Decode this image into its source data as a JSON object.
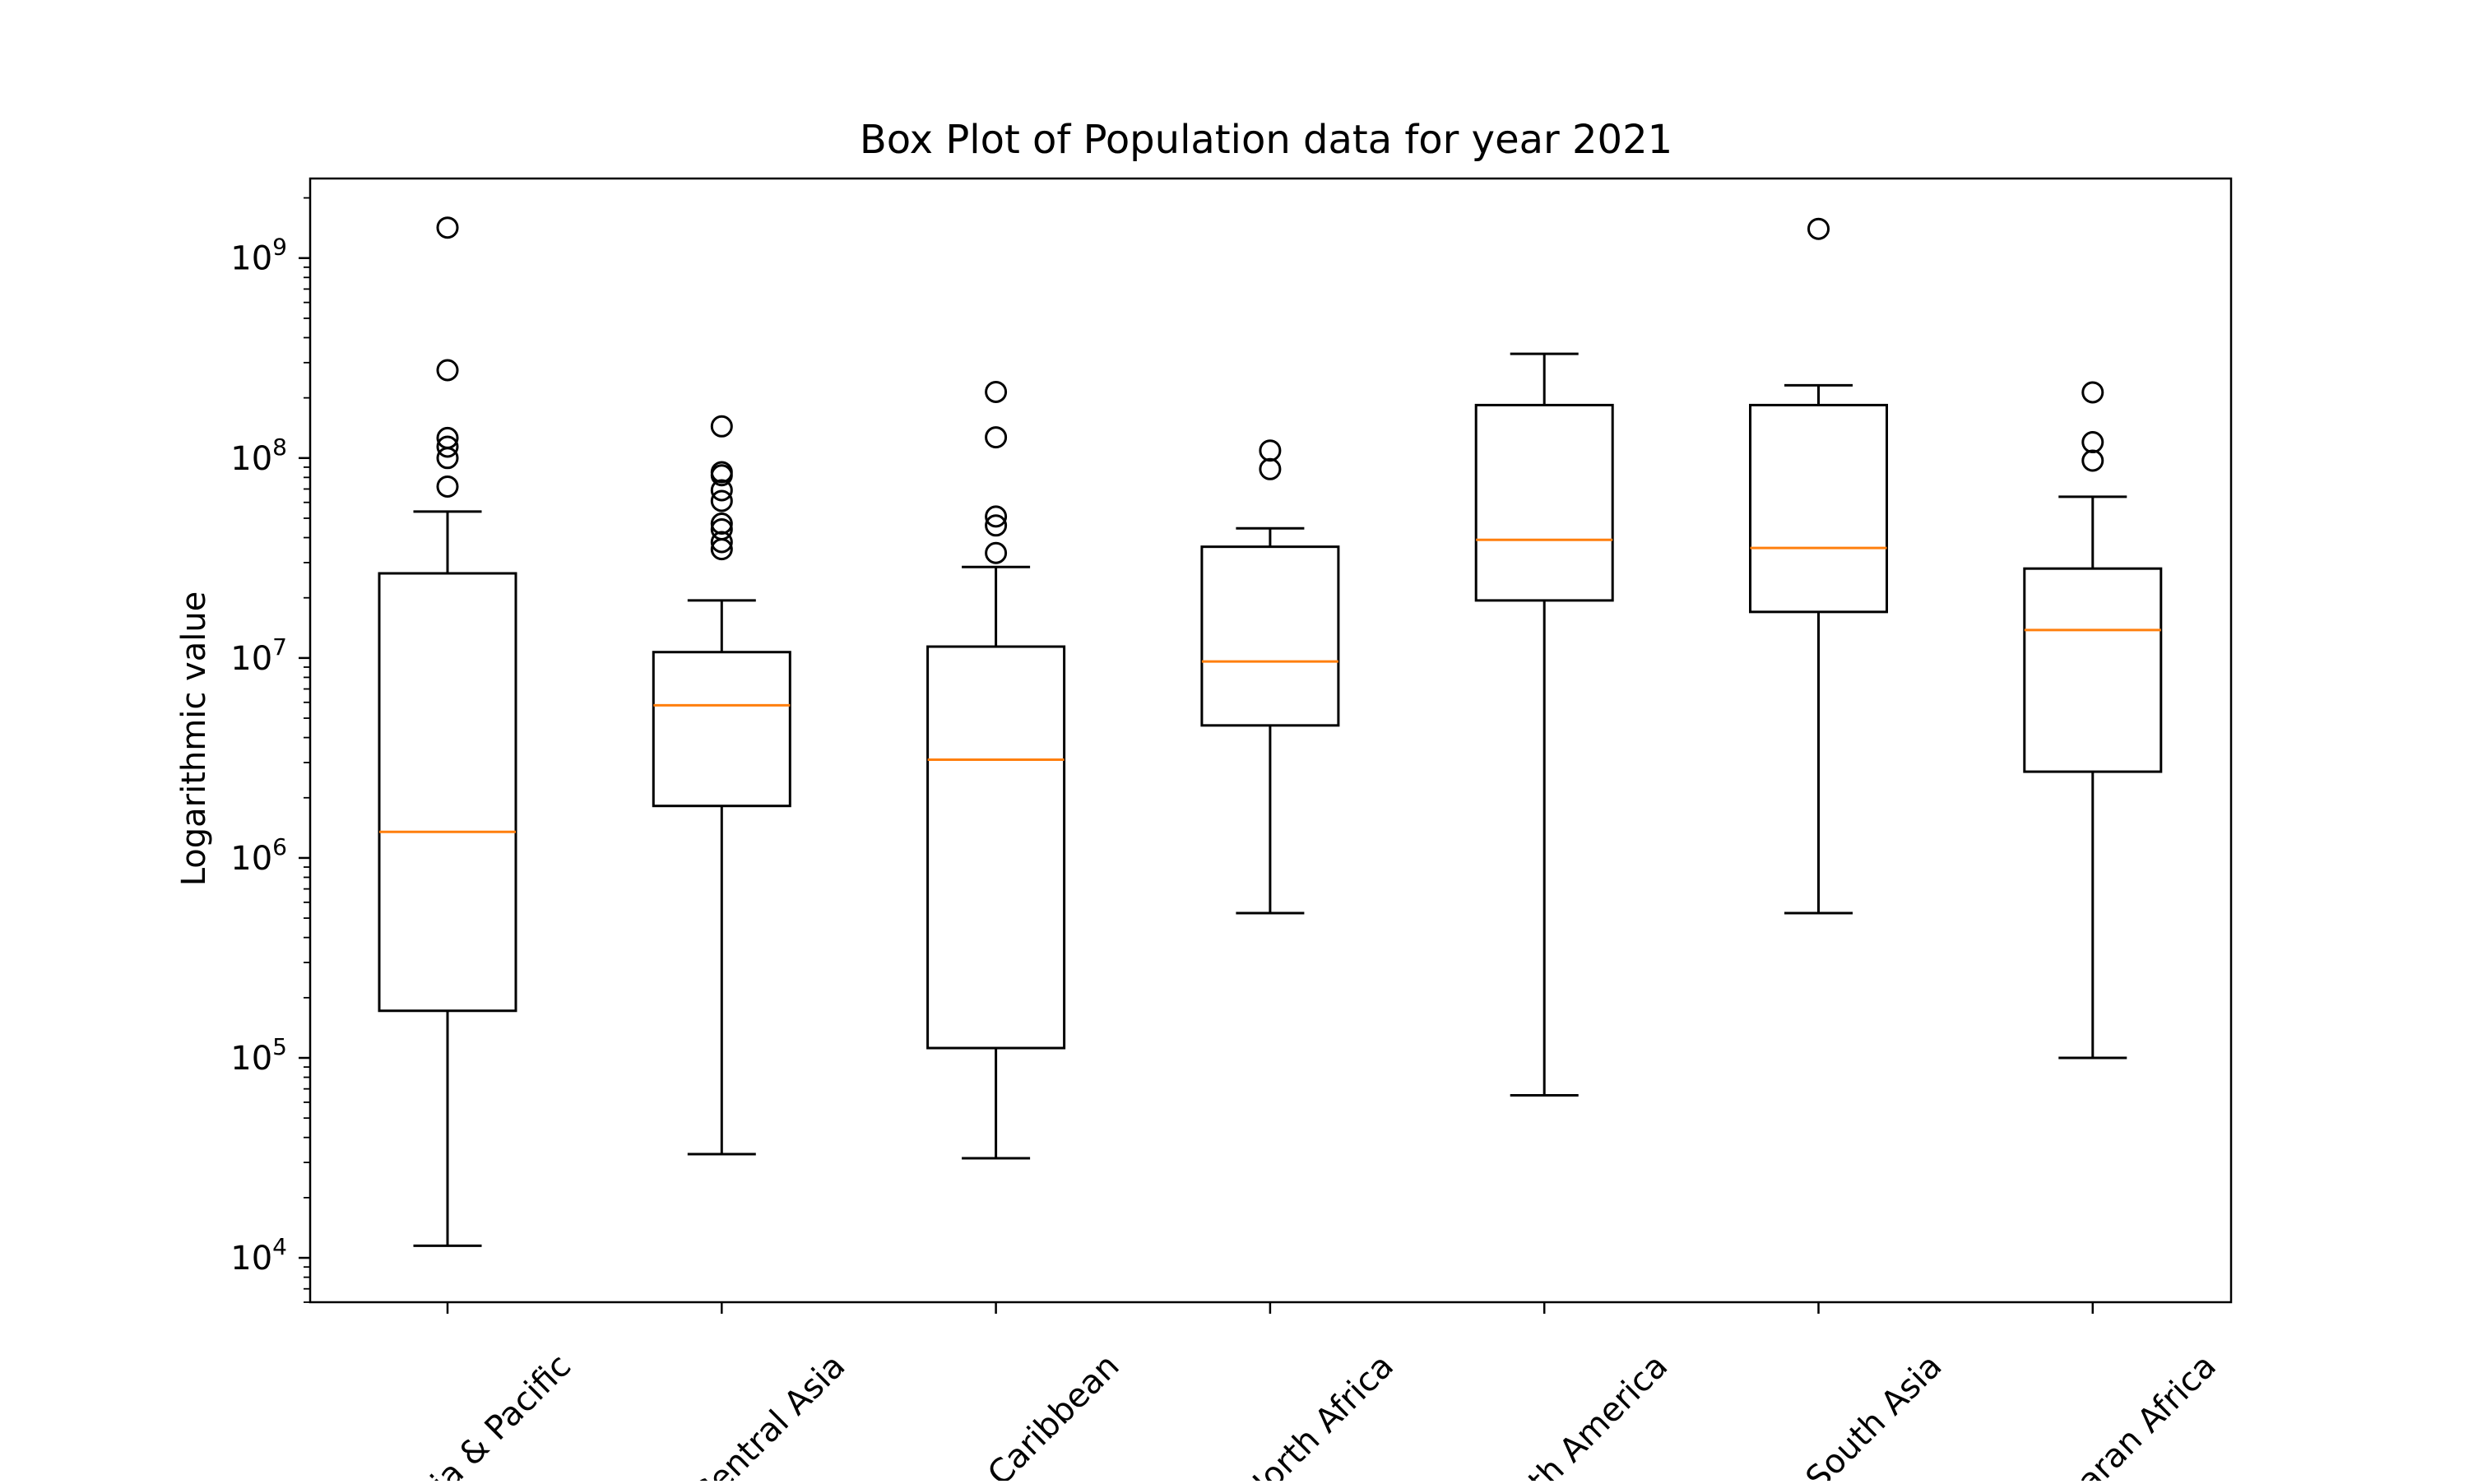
{
  "chart_data": {
    "type": "box",
    "title": "Box Plot of Population data for year 2021",
    "xlabel": "",
    "ylabel": "Logarithmic value",
    "yscale": "log",
    "ylim": [
      6000,
      2500000000
    ],
    "y_ticks": [
      {
        "value": 10000,
        "base": "10",
        "exp": "4"
      },
      {
        "value": 100000,
        "base": "10",
        "exp": "5"
      },
      {
        "value": 1000000,
        "base": "10",
        "exp": "6"
      },
      {
        "value": 10000000,
        "base": "10",
        "exp": "7"
      },
      {
        "value": 100000000,
        "base": "10",
        "exp": "8"
      },
      {
        "value": 1000000000,
        "base": "10",
        "exp": "9"
      }
    ],
    "grid": false,
    "median_color": "#ff7f0e",
    "box_color": "#000000",
    "categories": [
      "Asia & Pacific",
      "Central Asia",
      "& Caribbean",
      "North Africa",
      "orth America",
      "South Asia",
      "haran Africa"
    ],
    "boxes": [
      {
        "whisker_low": 11500,
        "q1": 172000,
        "median": 1350000,
        "q3": 26500000,
        "whisker_high": 54000000,
        "outliers": [
          1420000000,
          275000000,
          126000000,
          114000000,
          100000000,
          72000000
        ]
      },
      {
        "whisker_low": 33000,
        "q1": 1820000,
        "median": 5800000,
        "q3": 10700000,
        "whisker_high": 19400000,
        "outliers": [
          144000000,
          85000000,
          82000000,
          69000000,
          61000000,
          47000000,
          44000000,
          38000000,
          35000000
        ]
      },
      {
        "whisker_low": 31500,
        "q1": 112000,
        "median": 3100000,
        "q3": 11400000,
        "whisker_high": 28500000,
        "outliers": [
          214000000,
          127000000,
          51000000,
          46000000,
          33500000
        ]
      },
      {
        "whisker_low": 530000,
        "q1": 4600000,
        "median": 9600000,
        "q3": 36000000,
        "whisker_high": 44500000,
        "outliers": [
          109000000,
          88000000
        ]
      },
      {
        "whisker_low": 65000,
        "q1": 19400000,
        "median": 39000000,
        "q3": 184000000,
        "whisker_high": 332000000,
        "outliers": []
      },
      {
        "whisker_low": 530000,
        "q1": 17000000,
        "median": 35500000,
        "q3": 184000000,
        "whisker_high": 231000000,
        "outliers": [
          1400000000
        ]
      },
      {
        "whisker_low": 100000,
        "q1": 2700000,
        "median": 13800000,
        "q3": 28000000,
        "whisker_high": 64000000,
        "outliers": [
          213000000,
          120000000,
          97000000
        ]
      }
    ]
  }
}
